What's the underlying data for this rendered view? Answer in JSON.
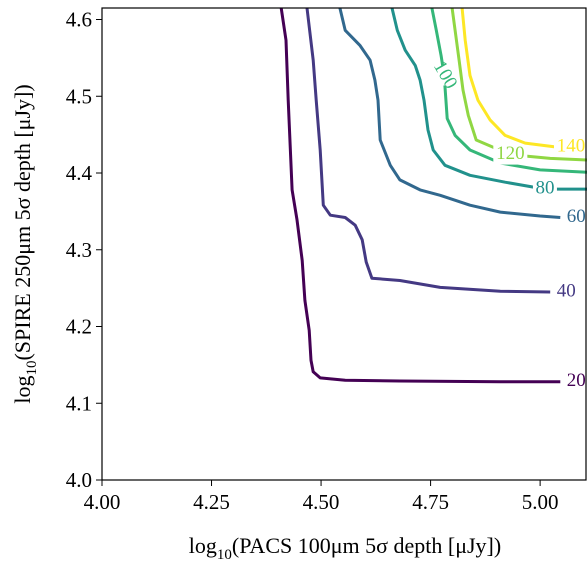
{
  "chart_data": {
    "type": "contour",
    "xlabel": [
      "log",
      "10",
      "(PACS 100μm 5σ depth [μJy])"
    ],
    "ylabel": [
      "log",
      "10",
      "(SPIRE 250μm 5σ depth [μJy])"
    ],
    "xlim": [
      4.0,
      5.107
    ],
    "ylim": [
      4.0,
      4.615
    ],
    "xticks": [
      {
        "value": 4,
        "label": "4.00"
      },
      4.25,
      {
        "value": 4.5,
        "label": "4.50"
      },
      4.75,
      {
        "value": 5,
        "label": "5.00"
      }
    ],
    "yticks": [
      {
        "value": 4,
        "label": "4.0"
      },
      4.1,
      4.2,
      4.3,
      4.4,
      4.5,
      4.6
    ],
    "series": [
      {
        "level": 20,
        "color": "#440154",
        "x": [
          4.409,
          4.42,
          4.425,
          4.434,
          4.445,
          4.457,
          4.463,
          4.473,
          4.477,
          4.482,
          4.498,
          4.555,
          4.68,
          4.909,
          5.046
        ],
        "y": [
          4.615,
          4.573,
          4.495,
          4.378,
          4.339,
          4.286,
          4.234,
          4.195,
          4.156,
          4.141,
          4.133,
          4.13,
          4.129,
          4.128,
          4.128
        ]
      },
      {
        "level": 40,
        "color": "#443983",
        "x": [
          4.468,
          4.482,
          4.489,
          4.498,
          4.505,
          4.521,
          4.555,
          4.578,
          4.594,
          4.603,
          4.616,
          4.68,
          4.772,
          4.909,
          5.023
        ],
        "y": [
          4.615,
          4.547,
          4.495,
          4.43,
          4.358,
          4.345,
          4.342,
          4.332,
          4.313,
          4.284,
          4.263,
          4.26,
          4.251,
          4.246,
          4.245
        ]
      },
      {
        "level": 60,
        "color": "#31688e",
        "x": [
          4.543,
          4.555,
          4.589,
          4.612,
          4.623,
          4.63,
          4.635,
          4.658,
          4.68,
          4.726,
          4.772,
          4.84,
          4.909,
          5.0,
          5.046
        ],
        "y": [
          4.615,
          4.586,
          4.566,
          4.547,
          4.521,
          4.495,
          4.443,
          4.41,
          4.391,
          4.378,
          4.371,
          4.358,
          4.349,
          4.344,
          4.342
        ]
      },
      {
        "level": 80,
        "color": "#21918c",
        "x": [
          4.662,
          4.674,
          4.692,
          4.715,
          4.726,
          4.735,
          4.744,
          4.756,
          4.783,
          4.84,
          4.92,
          5.011,
          5.107
        ],
        "y": [
          4.615,
          4.586,
          4.56,
          4.54,
          4.521,
          4.495,
          4.456,
          4.43,
          4.41,
          4.397,
          4.388,
          4.379,
          4.379
        ]
      },
      {
        "level": 100,
        "color": "#35b779",
        "x": [
          4.753,
          4.763,
          4.774,
          4.781,
          4.788,
          4.806,
          4.84,
          4.909,
          5.0,
          5.107
        ],
        "y": [
          4.615,
          4.586,
          4.553,
          4.527,
          4.471,
          4.449,
          4.43,
          4.413,
          4.404,
          4.401
        ]
      },
      {
        "level": 120,
        "color": "#90d743",
        "x": [
          4.799,
          4.806,
          4.815,
          4.824,
          4.836,
          4.854,
          4.932,
          5.023,
          5.107
        ],
        "y": [
          4.615,
          4.586,
          4.547,
          4.508,
          4.475,
          4.443,
          4.424,
          4.419,
          4.417
        ]
      },
      {
        "level": 140,
        "color": "#fde725",
        "x": [
          4.822,
          4.829,
          4.84,
          4.858,
          4.886,
          4.92,
          4.966,
          5.034
        ],
        "y": [
          4.615,
          4.573,
          4.527,
          4.495,
          4.469,
          4.449,
          4.439,
          4.434
        ]
      }
    ]
  }
}
